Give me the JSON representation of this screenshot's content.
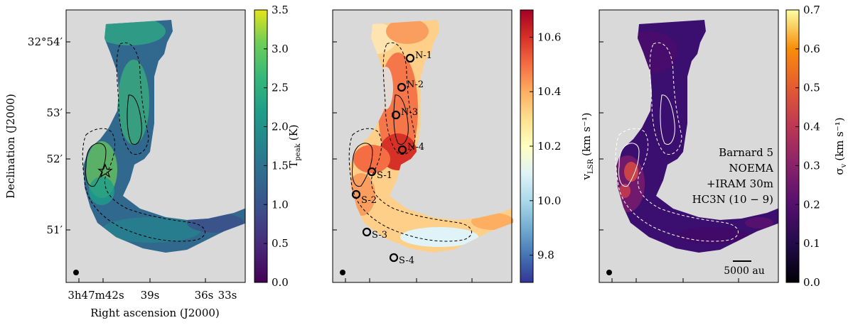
{
  "chart_data": [
    {
      "type": "heatmap",
      "panel": "left",
      "colorbar": {
        "label": "T",
        "label_sub": "peak",
        "label_unit": "(K)",
        "colormap": "viridis",
        "range": [
          0.0,
          3.5
        ],
        "ticks": [
          "0.0",
          "0.5",
          "1.0",
          "1.5",
          "2.0",
          "2.5",
          "3.0",
          "3.5"
        ]
      },
      "xlabel": "Right ascension (J2000)",
      "ylabel": "Declination (J2000)",
      "xticks": [
        "3h47m42s",
        "39s",
        "36s",
        "33s"
      ],
      "yticks": [
        "32°54′",
        "53′",
        "52′",
        "51′"
      ],
      "markers": [
        {
          "type": "star"
        }
      ]
    },
    {
      "type": "heatmap",
      "panel": "middle",
      "colorbar": {
        "label": "v",
        "label_sub": "LSR",
        "label_unit": "(km s⁻¹)",
        "colormap": "RdYlBu_r",
        "range": [
          9.7,
          10.7
        ],
        "ticks": [
          "9.8",
          "10.0",
          "10.2",
          "10.4",
          "10.6"
        ]
      },
      "labels": [
        "N-1",
        "N-2",
        "N-3",
        "N-4",
        "S-1",
        "S-2",
        "S-3",
        "S-4"
      ]
    },
    {
      "type": "heatmap",
      "panel": "right",
      "colorbar": {
        "label": "σ",
        "label_sub": "v",
        "label_unit": "(km s⁻¹)",
        "colormap": "inferno",
        "range": [
          0.0,
          0.7
        ],
        "ticks": [
          "0.0",
          "0.1",
          "0.2",
          "0.3",
          "0.4",
          "0.5",
          "0.6",
          "0.7"
        ]
      },
      "annotation": [
        "Barnard 5",
        "NOEMA",
        "+IRAM 30m",
        "HC3N (10 − 9)"
      ],
      "scalebar": "5000 au"
    }
  ]
}
